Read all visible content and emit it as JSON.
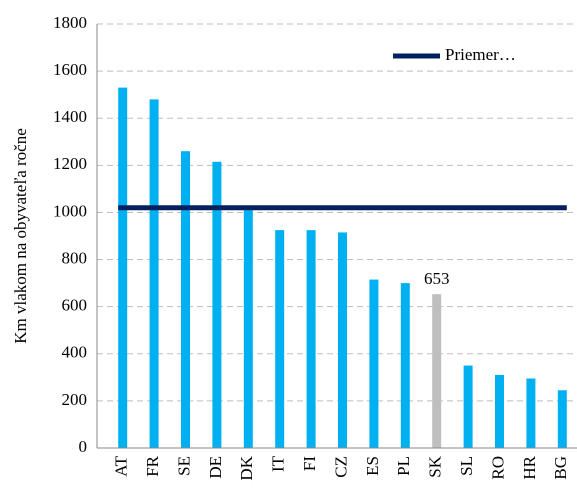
{
  "chart_data": {
    "type": "bar",
    "y_label": "Km vlakom na obyvateľa ročne",
    "categories": [
      "AT",
      "FR",
      "SE",
      "DE",
      "DK",
      "IT",
      "FI",
      "CZ",
      "ES",
      "PL",
      "SK",
      "SL",
      "RO",
      "HR",
      "BG"
    ],
    "values": [
      1530,
      1480,
      1260,
      1215,
      1010,
      925,
      925,
      915,
      715,
      700,
      653,
      350,
      310,
      295,
      245
    ],
    "colors": [
      "#00b0f0",
      "#00b0f0",
      "#00b0f0",
      "#00b0f0",
      "#00b0f0",
      "#00b0f0",
      "#00b0f0",
      "#00b0f0",
      "#00b0f0",
      "#00b0f0",
      "#bfbfbf",
      "#00b0f0",
      "#00b0f0",
      "#00b0f0",
      "#00b0f0"
    ],
    "labeled_categories": [
      "SK"
    ],
    "average": {
      "name": "Priemer…",
      "value": 1020,
      "color": "#002060"
    },
    "ylim": [
      0,
      1800
    ],
    "yticks": [
      0,
      200,
      400,
      600,
      800,
      1000,
      1200,
      1400,
      1600,
      1800
    ],
    "grid": true,
    "legend": "top-right"
  }
}
